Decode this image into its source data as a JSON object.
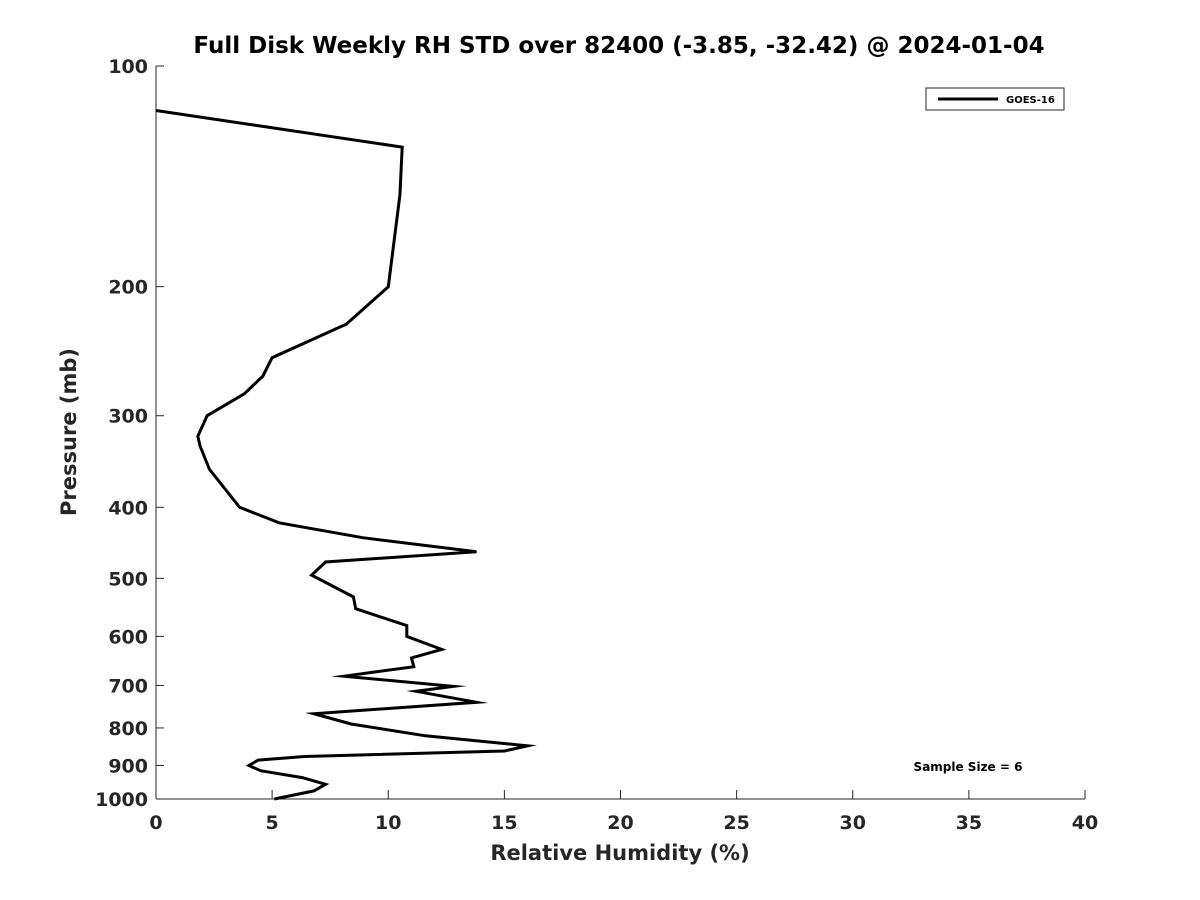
{
  "chart_data": {
    "type": "line",
    "title": "Full Disk Weekly RH STD over 82400 (-3.85, -32.42) @ 2024-01-04",
    "xlabel": "Relative Humidity (%)",
    "ylabel": "Pressure (mb)",
    "xlim": [
      0,
      40
    ],
    "ylim": [
      100,
      1000
    ],
    "y_scale": "log",
    "y_reversed": true,
    "xticks": [
      0,
      5,
      10,
      15,
      20,
      25,
      30,
      35,
      40
    ],
    "xtick_labels": [
      "0",
      "5",
      "10",
      "15",
      "20",
      "25",
      "30",
      "35",
      "40"
    ],
    "yticks": [
      100,
      200,
      300,
      400,
      500,
      600,
      700,
      800,
      900,
      1000
    ],
    "ytick_labels": [
      "100",
      "200",
      "300",
      "400",
      "500",
      "600",
      "700",
      "800",
      "900",
      "1000"
    ],
    "grid": false,
    "legend_position": "top-right",
    "annotation": "Sample Size = 6",
    "series": [
      {
        "name": "GOES-16",
        "color": "#000000",
        "x": [
          0.0,
          10.6,
          10.5,
          10.0,
          8.2,
          5.0,
          4.6,
          3.8,
          2.2,
          1.8,
          1.9,
          2.3,
          3.6,
          5.3,
          8.9,
          13.8,
          7.3,
          6.7,
          8.5,
          8.6,
          10.8,
          10.8,
          12.3,
          11.0,
          11.1,
          8.1,
          12.8,
          11.2,
          13.8,
          6.8,
          8.4,
          11.6,
          16.0,
          15.0,
          6.4,
          4.4,
          4.0,
          4.5,
          6.3,
          7.3,
          6.8,
          5.1
        ],
        "y": [
          115,
          129,
          150,
          200,
          225,
          250,
          265,
          280,
          300,
          320,
          330,
          355,
          400,
          420,
          440,
          460,
          475,
          495,
          530,
          550,
          580,
          600,
          625,
          642,
          660,
          680,
          702,
          713,
          738,
          765,
          790,
          820,
          846,
          860,
          875,
          885,
          900,
          915,
          935,
          955,
          975,
          1000
        ]
      }
    ]
  }
}
